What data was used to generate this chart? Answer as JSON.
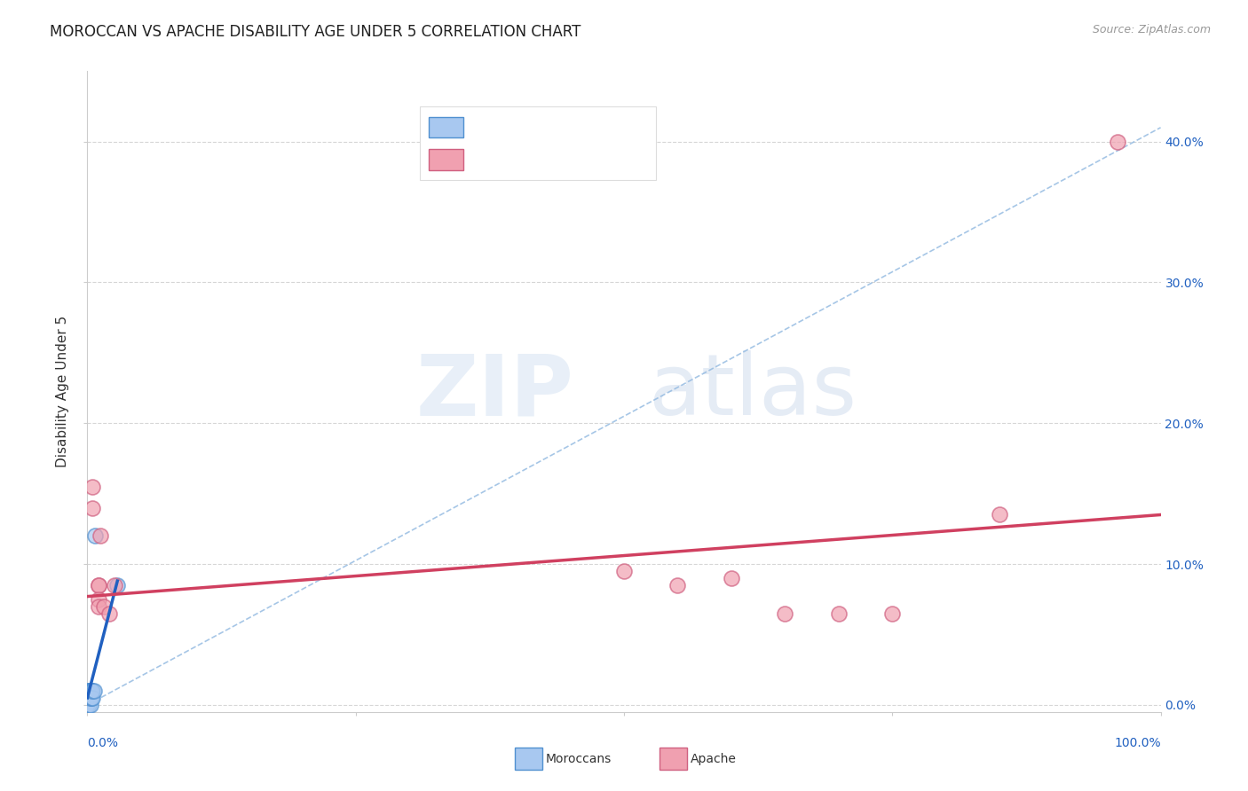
{
  "title": "MOROCCAN VS APACHE DISABILITY AGE UNDER 5 CORRELATION CHART",
  "source": "Source: ZipAtlas.com",
  "ylabel": "Disability Age Under 5",
  "ytick_labels": [
    "0.0%",
    "10.0%",
    "20.0%",
    "30.0%",
    "40.0%"
  ],
  "ytick_values": [
    0.0,
    0.1,
    0.2,
    0.3,
    0.4
  ],
  "xlim": [
    0.0,
    1.0
  ],
  "ylim": [
    -0.005,
    0.45
  ],
  "blue_fill": "#a8c8f0",
  "blue_edge": "#5090d0",
  "pink_fill": "#f0a0b0",
  "pink_edge": "#d06080",
  "blue_regline_color": "#2060c0",
  "pink_regline_color": "#d04060",
  "blue_dashline_color": "#90b8e0",
  "r_n_blue_color": "#2060c0",
  "r_n_pink_color": "#d04060",
  "grid_color": "#cccccc",
  "background_color": "#ffffff",
  "title_fontsize": 12,
  "axis_label_fontsize": 11,
  "tick_fontsize": 10,
  "source_fontsize": 9,
  "moroccan_x": [
    0.0,
    0.0,
    0.001,
    0.001,
    0.001,
    0.002,
    0.002,
    0.002,
    0.003,
    0.003,
    0.003,
    0.004,
    0.004,
    0.004,
    0.005,
    0.005,
    0.006,
    0.007,
    0.028
  ],
  "moroccan_y": [
    0.0,
    0.01,
    0.0,
    0.005,
    0.01,
    0.005,
    0.01,
    0.01,
    0.0,
    0.005,
    0.01,
    0.005,
    0.01,
    0.01,
    0.005,
    0.01,
    0.01,
    0.12,
    0.085
  ],
  "apache_x": [
    0.005,
    0.005,
    0.01,
    0.01,
    0.01,
    0.01,
    0.012,
    0.015,
    0.02,
    0.025,
    0.5,
    0.55,
    0.6,
    0.65,
    0.7,
    0.75,
    0.85,
    0.96
  ],
  "apache_y": [
    0.155,
    0.14,
    0.085,
    0.085,
    0.075,
    0.07,
    0.12,
    0.07,
    0.065,
    0.085,
    0.095,
    0.085,
    0.09,
    0.065,
    0.065,
    0.065,
    0.135,
    0.4
  ],
  "blue_regline_x": [
    0.0,
    0.028
  ],
  "blue_regline_y": [
    0.005,
    0.088
  ],
  "blue_dashline_x": [
    0.0,
    1.0
  ],
  "blue_dashline_y": [
    0.0,
    0.41
  ],
  "pink_regline_x": [
    0.0,
    1.0
  ],
  "pink_regline_y": [
    0.077,
    0.135
  ]
}
